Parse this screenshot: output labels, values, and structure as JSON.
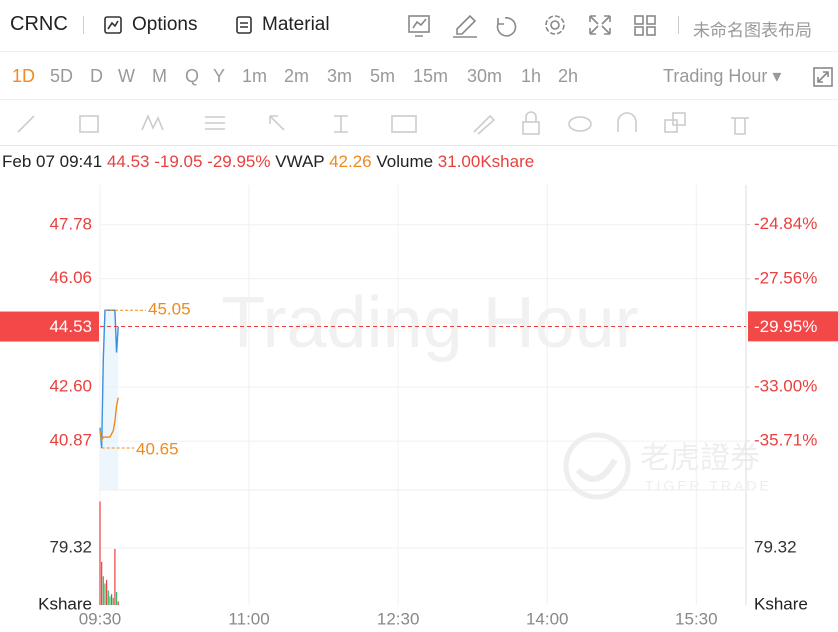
{
  "toolbar": {
    "symbol": "CRNC",
    "options": "Options",
    "material": "Material",
    "layout": "未命名图表布局"
  },
  "periods": [
    "1D",
    "5D",
    "D",
    "W",
    "M",
    "Q",
    "Y",
    "1m",
    "2m",
    "3m",
    "5m",
    "15m",
    "30m",
    "1h",
    "2h"
  ],
  "active_period": "1D",
  "session": "Trading Hour",
  "quote": {
    "time": "Feb 07 09:41",
    "price": 44.53,
    "change": -19.05,
    "change_pct": {
      "value": -29.95,
      "label": "-29.95%"
    },
    "vwap_label": "VWAP",
    "vwap": 42.26,
    "volume_label": "Volume",
    "volume": "31.00Kshare"
  },
  "watermark": "Trading Hour",
  "brand": {
    "cn": "老虎證券",
    "en": "TIGER TRADE"
  },
  "chart_data": {
    "type": "line",
    "x": [
      0,
      1,
      2,
      3,
      4,
      5,
      6,
      7,
      8,
      9,
      10,
      11
    ],
    "xlim": [
      0,
      390
    ],
    "xticks": [
      {
        "value": 0,
        "label": "09:30"
      },
      {
        "value": 90,
        "label": "11:00"
      },
      {
        "value": 180,
        "label": "12:30"
      },
      {
        "value": 270,
        "label": "14:00"
      },
      {
        "value": 360,
        "label": "15:30"
      }
    ],
    "ylim": [
      39.31,
      49.05
    ],
    "yticks": [
      {
        "value": 47.78,
        "label": "47.78"
      },
      {
        "value": 46.06,
        "label": "46.06"
      },
      {
        "value": 42.6,
        "label": "42.60"
      },
      {
        "value": 40.87,
        "label": "40.87"
      }
    ],
    "y2lim": [
      -38.17,
      -22.85
    ],
    "y2ticks": [
      {
        "value": -24.84,
        "label": "-24.84%"
      },
      {
        "value": -27.56,
        "label": "-27.56%"
      },
      {
        "value": -33.0,
        "label": "-33.00%"
      },
      {
        "value": -35.71,
        "label": "-35.71%"
      }
    ],
    "series": [
      {
        "name": "Price",
        "color": "#3d8fe0",
        "values": [
          41.3,
          40.65,
          43.5,
          45.05,
          45.05,
          45.05,
          45.05,
          45.05,
          45.05,
          45.05,
          43.7,
          44.53
        ]
      },
      {
        "name": "VWAP",
        "color": "#f08a1c",
        "values": [
          41.2,
          40.9,
          41.0,
          41.0,
          41.0,
          41.0,
          41.0,
          41.1,
          41.2,
          41.5,
          42.0,
          42.26
        ]
      }
    ],
    "annotations": {
      "high": 45.05,
      "low": 40.65
    },
    "volume": {
      "values": [
        144,
        60,
        40,
        30,
        35,
        20,
        12,
        15,
        10,
        78,
        18,
        5
      ],
      "colors": [
        "#e8403f",
        "#e8403f",
        "#2dbb63",
        "#2dbb63",
        "#e8403f",
        "#2dbb63",
        "#2dbb63",
        "#e8403f",
        "#2dbb63",
        "#e8403f",
        "#2dbb63",
        "#e8403f"
      ],
      "ylim": [
        0,
        160
      ],
      "yticks": [
        {
          "value": 79.32,
          "label": "79.32"
        }
      ],
      "unit": "Kshare"
    },
    "grid": true
  }
}
